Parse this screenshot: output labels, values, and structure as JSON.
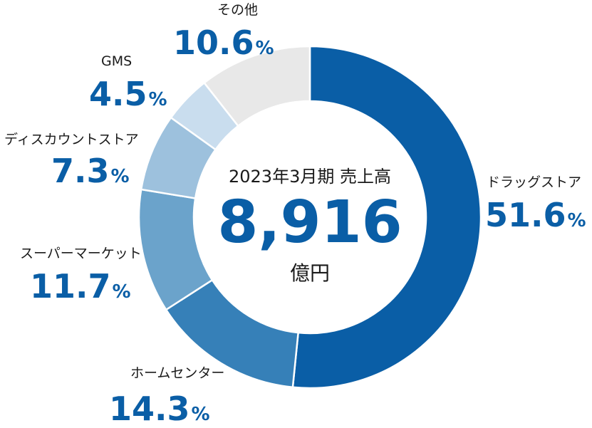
{
  "chart_data": {
    "type": "pie",
    "title": "2023年3月期 売上高",
    "total": {
      "value": "8,916",
      "unit": "億円"
    },
    "percent_symbol": "%",
    "categories": [
      "ドラッグストア",
      "ホームセンター",
      "スーパーマーケット",
      "ディスカウントストア",
      "GMS",
      "その他"
    ],
    "values": [
      51.6,
      14.3,
      11.7,
      7.3,
      4.5,
      10.6
    ],
    "value_labels": [
      "51.6",
      "14.3",
      "11.7",
      "7.3",
      "4.5",
      "10.6"
    ],
    "colors": [
      "#0a5ea6",
      "#3680b8",
      "#6ba3cb",
      "#9dc1dd",
      "#c9ddee",
      "#e8e8e8"
    ],
    "value_color": "#0a5ea6",
    "donut": true
  }
}
